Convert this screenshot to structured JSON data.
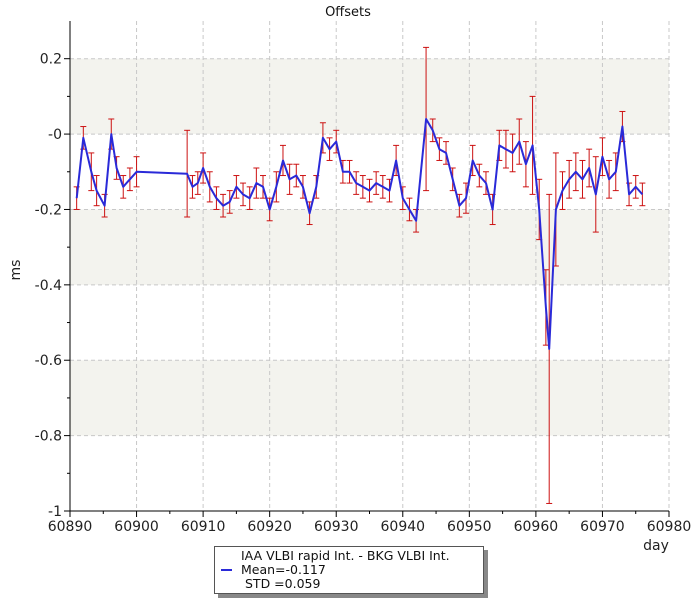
{
  "chart_data": {
    "type": "line",
    "title": "Offsets",
    "xlabel": "day",
    "ylabel": "ms",
    "xlim": [
      60890,
      60980
    ],
    "ylim": [
      -1,
      0.3
    ],
    "x_ticks": [
      60890,
      60900,
      60910,
      60920,
      60930,
      60940,
      60950,
      60960,
      60970,
      60980
    ],
    "x_tick_labels": [
      "60890",
      "60900",
      "60910",
      "60920",
      "60930",
      "60940",
      "60950",
      "60960",
      "60970",
      "60980"
    ],
    "y_ticks": [
      0.2,
      0,
      -0.2,
      -0.4,
      -0.6,
      -0.8,
      -1
    ],
    "y_tick_labels": [
      "0.2",
      "-0",
      "-0.2",
      "-0.4",
      "-0.6",
      "-0.8",
      "-1"
    ],
    "grid": true,
    "colors": {
      "line": "#2a2ad8",
      "errorbar": "#cc1111",
      "band": "#f3f3ee",
      "grid": "#c8c8c8"
    },
    "legend": {
      "placement": "bottom-center",
      "line1": "IAA VLBI rapid Int. - BKG VLBI Int.",
      "line2": "Mean=-0.117",
      "line3": " STD =0.059"
    },
    "series": [
      {
        "points": [
          [
            60891.0,
            -0.17,
            0.03
          ],
          [
            60892.0,
            -0.01,
            0.03
          ],
          [
            60893.2,
            -0.1,
            0.05
          ],
          [
            60894.0,
            -0.15,
            0.04
          ],
          [
            60895.2,
            -0.19,
            0.03
          ],
          [
            60896.2,
            0.0,
            0.04
          ],
          [
            60897.0,
            -0.09,
            0.03
          ],
          [
            60898.0,
            -0.14,
            0.03
          ],
          [
            60899.0,
            -0.12,
            0.03
          ],
          [
            60900.0,
            -0.1,
            0.04
          ],
          [
            60907.6,
            -0.105,
            0.115
          ],
          [
            60908.4,
            -0.14,
            0.03
          ],
          [
            60909.2,
            -0.13,
            0.03
          ],
          [
            60910.0,
            -0.09,
            0.04
          ],
          [
            60911.0,
            -0.14,
            0.04
          ],
          [
            60912.0,
            -0.17,
            0.03
          ],
          [
            60913.0,
            -0.19,
            0.03
          ],
          [
            60914.0,
            -0.18,
            0.03
          ],
          [
            60915.0,
            -0.14,
            0.03
          ],
          [
            60916.0,
            -0.16,
            0.03
          ],
          [
            60917.0,
            -0.17,
            0.03
          ],
          [
            60918.0,
            -0.13,
            0.04
          ],
          [
            60919.0,
            -0.14,
            0.03
          ],
          [
            60920.0,
            -0.2,
            0.03
          ],
          [
            60921.0,
            -0.14,
            0.04
          ],
          [
            60922.0,
            -0.07,
            0.04
          ],
          [
            60923.0,
            -0.12,
            0.04
          ],
          [
            60924.0,
            -0.11,
            0.03
          ],
          [
            60925.0,
            -0.14,
            0.03
          ],
          [
            60926.0,
            -0.21,
            0.03
          ],
          [
            60927.0,
            -0.14,
            0.03
          ],
          [
            60928.0,
            -0.01,
            0.04
          ],
          [
            60929.0,
            -0.04,
            0.03
          ],
          [
            60930.0,
            -0.02,
            0.03
          ],
          [
            60931.0,
            -0.1,
            0.03
          ],
          [
            60932.0,
            -0.1,
            0.03
          ],
          [
            60933.0,
            -0.13,
            0.03
          ],
          [
            60934.0,
            -0.14,
            0.03
          ],
          [
            60935.0,
            -0.15,
            0.03
          ],
          [
            60936.0,
            -0.13,
            0.03
          ],
          [
            60937.0,
            -0.14,
            0.03
          ],
          [
            60938.0,
            -0.15,
            0.03
          ],
          [
            60939.0,
            -0.07,
            0.04
          ],
          [
            60940.0,
            -0.17,
            0.03
          ],
          [
            60941.0,
            -0.2,
            0.03
          ],
          [
            60942.0,
            -0.23,
            0.03
          ],
          [
            60943.5,
            0.04,
            0.19
          ],
          [
            60944.5,
            0.01,
            0.03
          ],
          [
            60945.5,
            -0.04,
            0.03
          ],
          [
            60946.5,
            -0.05,
            0.03
          ],
          [
            60947.5,
            -0.12,
            0.03
          ],
          [
            60948.5,
            -0.19,
            0.03
          ],
          [
            60949.5,
            -0.17,
            0.04
          ],
          [
            60950.5,
            -0.07,
            0.04
          ],
          [
            60951.5,
            -0.11,
            0.03
          ],
          [
            60952.5,
            -0.13,
            0.03
          ],
          [
            60953.5,
            -0.2,
            0.04
          ],
          [
            60954.5,
            -0.03,
            0.04
          ],
          [
            60955.5,
            -0.04,
            0.05
          ],
          [
            60956.5,
            -0.05,
            0.05
          ],
          [
            60957.5,
            -0.02,
            0.06
          ],
          [
            60958.5,
            -0.08,
            0.06
          ],
          [
            60959.5,
            -0.03,
            0.13
          ],
          [
            60960.5,
            -0.2,
            0.08
          ],
          [
            60961.5,
            -0.46,
            0.1
          ],
          [
            60962.0,
            -0.57,
            0.41
          ],
          [
            60963.0,
            -0.2,
            0.15
          ],
          [
            60964.0,
            -0.15,
            0.05
          ],
          [
            60965.0,
            -0.12,
            0.05
          ],
          [
            60966.0,
            -0.1,
            0.05
          ],
          [
            60967.0,
            -0.12,
            0.05
          ],
          [
            60968.0,
            -0.09,
            0.05
          ],
          [
            60969.0,
            -0.16,
            0.1
          ],
          [
            60970.0,
            -0.06,
            0.05
          ],
          [
            60971.0,
            -0.12,
            0.05
          ],
          [
            60972.0,
            -0.1,
            0.05
          ],
          [
            60973.0,
            0.02,
            0.04
          ],
          [
            60974.0,
            -0.16,
            0.03
          ],
          [
            60975.0,
            -0.14,
            0.03
          ],
          [
            60976.0,
            -0.16,
            0.03
          ]
        ]
      }
    ]
  }
}
